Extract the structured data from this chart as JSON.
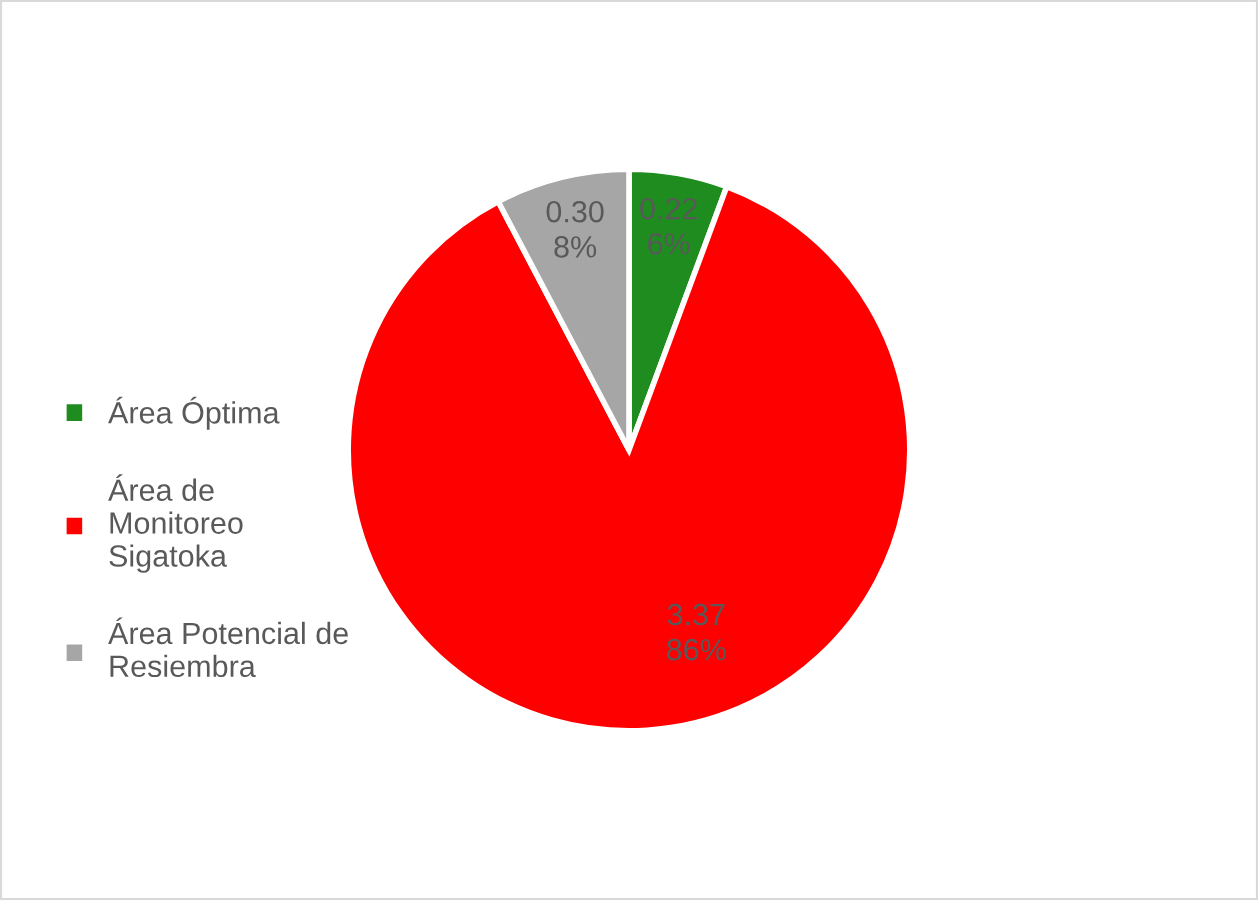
{
  "chart_data": {
    "type": "pie",
    "categories": [
      "Área Óptima",
      "Área de Monitoreo Sigatoka",
      "Área Potencial de Resiembra"
    ],
    "values": [
      0.22,
      3.37,
      0.3
    ],
    "colors": [
      "#1e8c1e",
      "#ff0000",
      "#a6a6a6"
    ],
    "value_labels": [
      "0.22\n6%",
      "3.37\n86%",
      "0.30\n8%"
    ],
    "legend": "left"
  }
}
